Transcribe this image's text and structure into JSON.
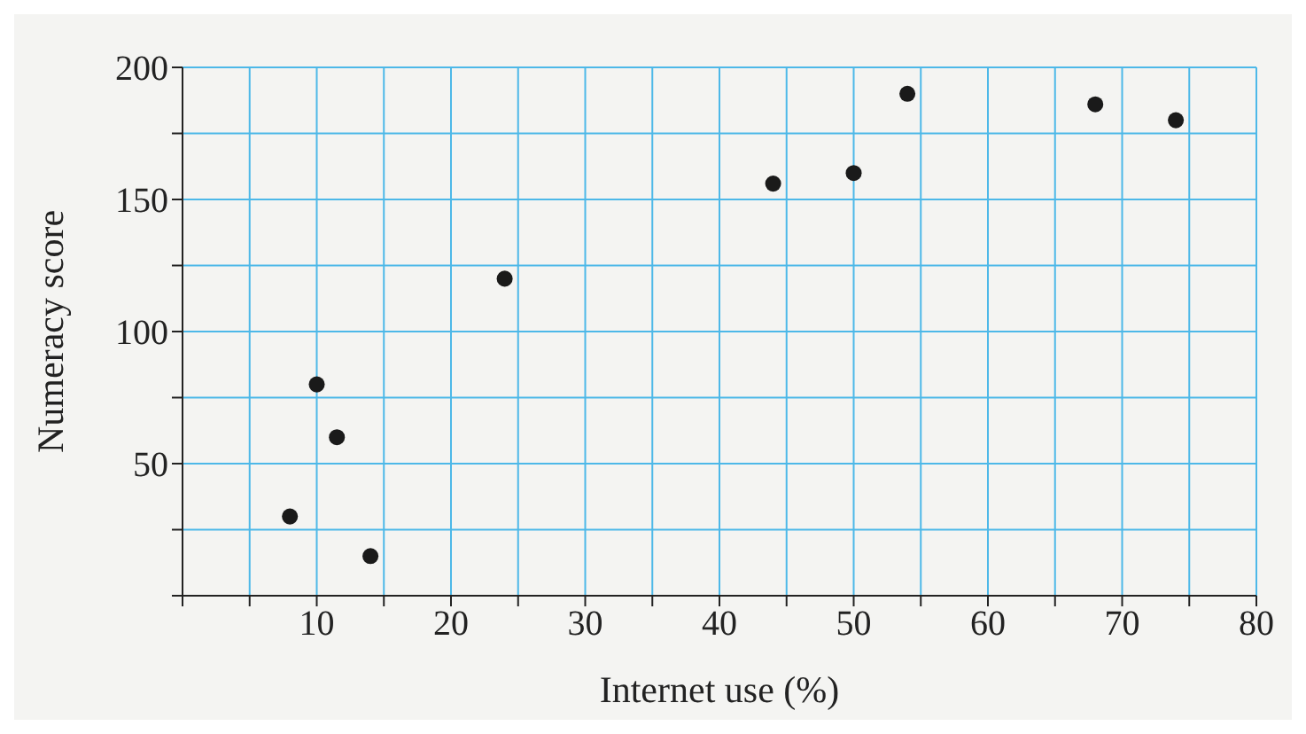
{
  "chart_data": {
    "type": "scatter",
    "xlabel": "Internet use (%)",
    "ylabel": "Numeracy score",
    "x": [
      8,
      10,
      11.5,
      14,
      24,
      44,
      50,
      54,
      68,
      74
    ],
    "series": [
      {
        "color": "#1a1a1a",
        "values": [
          30,
          80,
          60,
          15,
          120,
          156,
          160,
          190,
          186,
          180
        ]
      }
    ],
    "xlim": [
      0,
      80
    ],
    "ylim": [
      0,
      200
    ],
    "xticks": [
      {
        "value": 0,
        "label": null
      },
      {
        "value": 5,
        "label": null
      },
      10,
      {
        "value": 15,
        "label": null
      },
      20,
      {
        "value": 25,
        "label": null
      },
      30,
      {
        "value": 35,
        "label": null
      },
      40,
      {
        "value": 45,
        "label": null
      },
      50,
      {
        "value": 55,
        "label": null
      },
      60,
      {
        "value": 65,
        "label": null
      },
      70,
      {
        "value": 75,
        "label": null
      },
      80
    ],
    "yticks": [
      {
        "value": 0,
        "label": null
      },
      {
        "value": 25,
        "label": null
      },
      50,
      {
        "value": 75,
        "label": null
      },
      100,
      {
        "value": 125,
        "label": null
      },
      150,
      {
        "value": 175,
        "label": null
      },
      200
    ],
    "grid": true,
    "marker": "circle",
    "legend": false
  }
}
